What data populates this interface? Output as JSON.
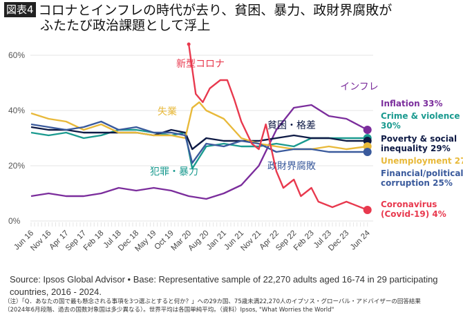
{
  "header": {
    "badge": "図表4",
    "title_line1": "コロナとインフレの時代が去り、貧困、暴力、政財界腐敗が",
    "title_line2": "ふたたび政治課題として浮上"
  },
  "chart_data": {
    "type": "line",
    "title": "",
    "xlabel": "",
    "ylabel": "",
    "ylim": [
      0,
      65
    ],
    "yticks": [
      "0%",
      "20%",
      "40%",
      "60%"
    ],
    "ytick_values": [
      0,
      20,
      40,
      60
    ],
    "grid": true,
    "x_ticks": [
      "Jun 16",
      "Nov 16",
      "Apr 17",
      "Sep 17",
      "Feb 18",
      "Jul 18",
      "Dec 18",
      "May 19",
      "Oct 19",
      "Mar 20",
      "Aug 20",
      "Jan 21",
      "Jun 21",
      "Nov 21",
      "Apr 22",
      "Sep 22",
      "Feb 23",
      "Jul 23",
      "Dec 23",
      "Jun 24"
    ],
    "x_tick_dates": [
      "2016-06",
      "2016-11",
      "2017-04",
      "2017-09",
      "2018-02",
      "2018-07",
      "2018-12",
      "2019-05",
      "2019-10",
      "2020-03",
      "2020-08",
      "2021-01",
      "2021-06",
      "2021-11",
      "2022-04",
      "2022-09",
      "2023-02",
      "2023-07",
      "2023-12",
      "2024-06"
    ],
    "legend_placement": "right",
    "series": [
      {
        "name": "Inflation 33%",
        "annotation": "インフレ",
        "color": "#7b2d9c",
        "points": [
          [
            "2016-06",
            9
          ],
          [
            "2016-11",
            10
          ],
          [
            "2017-04",
            9
          ],
          [
            "2017-09",
            9
          ],
          [
            "2018-02",
            10
          ],
          [
            "2018-07",
            12
          ],
          [
            "2018-12",
            11
          ],
          [
            "2019-05",
            12
          ],
          [
            "2019-10",
            11
          ],
          [
            "2020-03",
            9
          ],
          [
            "2020-08",
            8
          ],
          [
            "2021-01",
            10
          ],
          [
            "2021-06",
            13
          ],
          [
            "2021-11",
            20
          ],
          [
            "2022-04",
            33
          ],
          [
            "2022-09",
            41
          ],
          [
            "2023-02",
            42
          ],
          [
            "2023-07",
            38
          ],
          [
            "2023-12",
            37
          ],
          [
            "2024-06",
            33
          ]
        ]
      },
      {
        "name": "Crime & violence 30%",
        "annotation": "犯罪・暴力",
        "color": "#1a9a8f",
        "points": [
          [
            "2016-06",
            32
          ],
          [
            "2016-11",
            31
          ],
          [
            "2017-04",
            32
          ],
          [
            "2017-09",
            30
          ],
          [
            "2018-02",
            31
          ],
          [
            "2018-07",
            33
          ],
          [
            "2018-12",
            33
          ],
          [
            "2019-05",
            32
          ],
          [
            "2019-10",
            31
          ],
          [
            "2020-02",
            32
          ],
          [
            "2020-04",
            19
          ],
          [
            "2020-08",
            27
          ],
          [
            "2021-01",
            28
          ],
          [
            "2021-06",
            27
          ],
          [
            "2021-11",
            27
          ],
          [
            "2022-04",
            28
          ],
          [
            "2022-09",
            27
          ],
          [
            "2023-02",
            30
          ],
          [
            "2023-07",
            30
          ],
          [
            "2023-12",
            30
          ],
          [
            "2024-06",
            30
          ]
        ]
      },
      {
        "name": "Poverty & social inequality 29%",
        "annotation": "貧困・格差",
        "color": "#0e1a45",
        "points": [
          [
            "2016-06",
            34
          ],
          [
            "2016-11",
            33
          ],
          [
            "2017-04",
            33
          ],
          [
            "2017-09",
            32
          ],
          [
            "2018-02",
            32
          ],
          [
            "2018-07",
            32
          ],
          [
            "2018-12",
            32
          ],
          [
            "2019-05",
            31
          ],
          [
            "2019-10",
            33
          ],
          [
            "2020-02",
            32
          ],
          [
            "2020-04",
            26
          ],
          [
            "2020-08",
            30
          ],
          [
            "2021-01",
            29
          ],
          [
            "2021-06",
            29
          ],
          [
            "2021-11",
            29
          ],
          [
            "2022-04",
            30
          ],
          [
            "2022-09",
            31
          ],
          [
            "2023-02",
            30
          ],
          [
            "2023-07",
            30
          ],
          [
            "2023-12",
            29
          ],
          [
            "2024-06",
            29
          ]
        ]
      },
      {
        "name": "Unemployment 27",
        "annotation": "失業",
        "color": "#e8b93a",
        "points": [
          [
            "2016-06",
            39
          ],
          [
            "2016-11",
            37
          ],
          [
            "2017-04",
            36
          ],
          [
            "2017-09",
            33
          ],
          [
            "2018-02",
            35
          ],
          [
            "2018-07",
            32
          ],
          [
            "2018-12",
            32
          ],
          [
            "2019-05",
            31
          ],
          [
            "2019-10",
            31
          ],
          [
            "2020-02",
            30
          ],
          [
            "2020-04",
            41
          ],
          [
            "2020-06",
            43
          ],
          [
            "2020-08",
            40
          ],
          [
            "2021-01",
            37
          ],
          [
            "2021-06",
            30
          ],
          [
            "2021-11",
            28
          ],
          [
            "2022-04",
            27
          ],
          [
            "2022-09",
            26
          ],
          [
            "2023-02",
            26
          ],
          [
            "2023-07",
            27
          ],
          [
            "2023-12",
            26
          ],
          [
            "2024-06",
            27
          ]
        ]
      },
      {
        "name": "Financial/political corruption 25%",
        "annotation": "政財界腐敗",
        "color": "#3a5a9c",
        "points": [
          [
            "2016-06",
            35
          ],
          [
            "2016-11",
            34
          ],
          [
            "2017-04",
            33
          ],
          [
            "2017-09",
            34
          ],
          [
            "2018-02",
            36
          ],
          [
            "2018-07",
            33
          ],
          [
            "2018-12",
            34
          ],
          [
            "2019-05",
            32
          ],
          [
            "2019-10",
            32
          ],
          [
            "2020-02",
            31
          ],
          [
            "2020-04",
            21
          ],
          [
            "2020-08",
            28
          ],
          [
            "2021-01",
            27
          ],
          [
            "2021-06",
            29
          ],
          [
            "2021-11",
            28
          ],
          [
            "2022-04",
            25
          ],
          [
            "2022-09",
            26
          ],
          [
            "2023-02",
            26
          ],
          [
            "2023-07",
            25
          ],
          [
            "2023-12",
            25
          ],
          [
            "2024-06",
            25
          ]
        ]
      },
      {
        "name": "Coronavirus (Covid-19) 4%",
        "annotation": "新型コロナ",
        "color": "#e8394e",
        "points": [
          [
            "2020-03",
            64
          ],
          [
            "2020-05",
            46
          ],
          [
            "2020-07",
            43
          ],
          [
            "2020-09",
            48
          ],
          [
            "2020-12",
            51
          ],
          [
            "2021-02",
            51
          ],
          [
            "2021-04",
            44
          ],
          [
            "2021-06",
            36
          ],
          [
            "2021-09",
            28
          ],
          [
            "2021-11",
            26
          ],
          [
            "2022-01",
            35
          ],
          [
            "2022-04",
            18
          ],
          [
            "2022-06",
            12
          ],
          [
            "2022-09",
            15
          ],
          [
            "2022-11",
            9
          ],
          [
            "2023-02",
            12
          ],
          [
            "2023-04",
            7
          ],
          [
            "2023-08",
            5
          ],
          [
            "2023-12",
            7
          ],
          [
            "2024-06",
            4
          ]
        ]
      }
    ]
  },
  "footer": {
    "source": "Source: Ipsos Global Advisor • Base: Representative sample of 22,270 adults aged 16-74 in 29 participating countries, 2016 - 2024.",
    "note_line1": "（注）「Q．あなたの国で最も懸念される事項を3つ選ぶとすると何か？」への29カ国、75歳未満22,270人のイプソス・グローバル・アドバイザーの回答結果",
    "note_line2": "（2024年6月段階、過去の国数対象国は多少異なる）。世界平均は各国単純平均。（資料）Ipsos, \"What Worries the World\""
  }
}
